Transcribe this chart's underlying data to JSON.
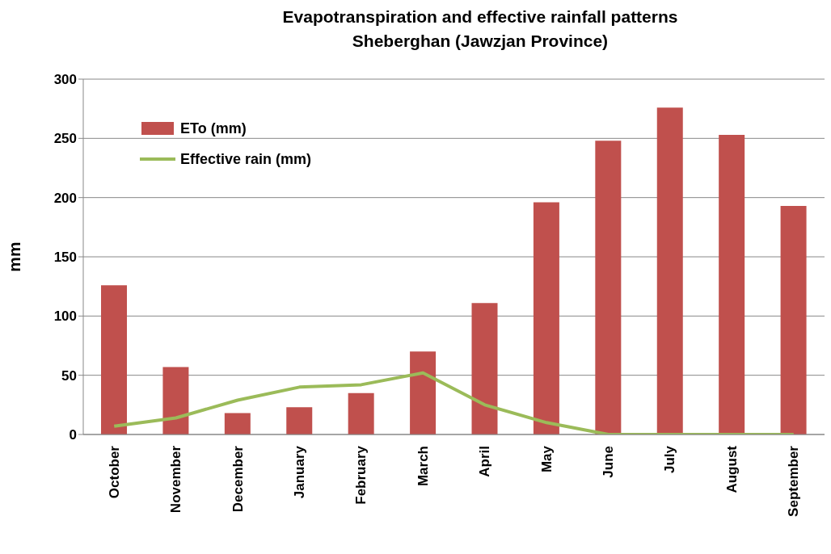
{
  "chart_data": {
    "type": "bar",
    "title": "Evapotranspiration and effective rainfall patterns\nSheberghan (Jawzjan Province)",
    "ylabel": "mm",
    "categories": [
      "October",
      "November",
      "December",
      "January",
      "February",
      "March",
      "April",
      "May",
      "June",
      "July",
      "August",
      "September"
    ],
    "series": [
      {
        "name": "ETo (mm)",
        "color": "#c0504d",
        "values": [
          126,
          57,
          18,
          23,
          35,
          70,
          111,
          196,
          248,
          276,
          253,
          193
        ]
      },
      {
        "name": "Effective rain (mm)",
        "type": "line",
        "color": "#9bbb59",
        "values": [
          7,
          14,
          29,
          40,
          42,
          52,
          25,
          10,
          0,
          0,
          0,
          0
        ]
      }
    ],
    "ylim": [
      0,
      300
    ],
    "yticks": [
      0,
      50,
      100,
      150,
      200,
      250,
      300
    ],
    "grid": "y",
    "legend": "top left",
    "marker": "none",
    "line_style": "solid"
  }
}
